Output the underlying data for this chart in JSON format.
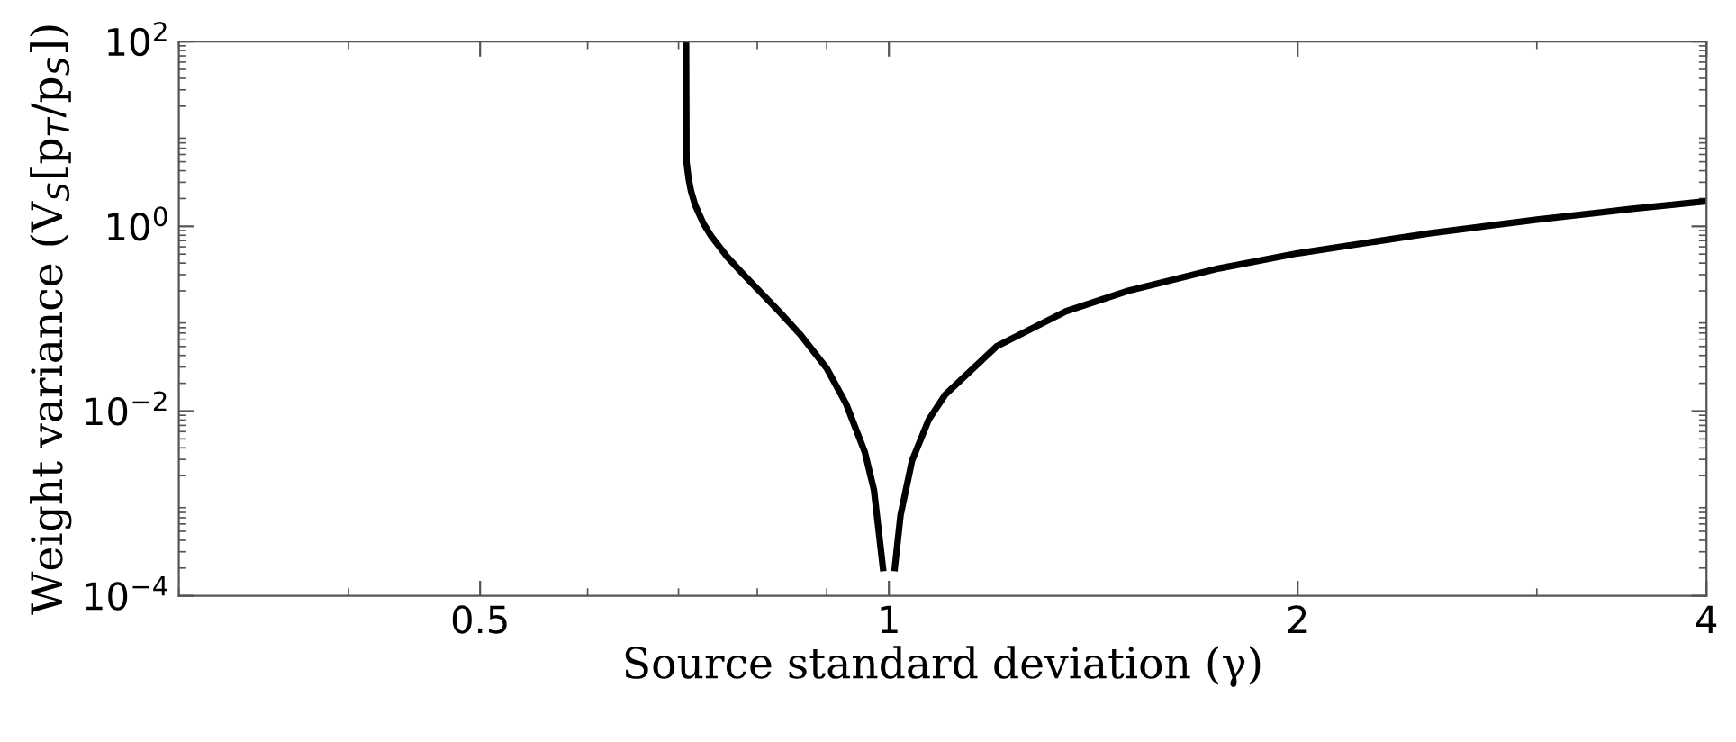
{
  "chart_data": {
    "type": "line",
    "xlabel": "Source standard deviation (γ)",
    "ylabel": "Weight variance (V$_{S}$[p$_{T}$/p$_{S}$])",
    "log": "xy",
    "grid": false,
    "marker": "none",
    "line_style": "solid",
    "xlim": [
      0.3,
      4
    ],
    "xticks": [
      0.5,
      1,
      2,
      4
    ],
    "ylim": [
      0.0001,
      100
    ],
    "yticks": [
      {
        "value": 0.0001,
        "label": "10$^{−4}$"
      },
      {
        "value": 0.01,
        "label": "10$^{−2}$"
      },
      {
        "value": 1,
        "label": "10$^{0}$"
      },
      {
        "value": 100,
        "label": "10$^{2}$"
      }
    ],
    "series": [
      {
        "color": "#000000",
        "x": [
          0.709,
          0.7095,
          0.712,
          0.715,
          0.72,
          0.73,
          0.74,
          0.76,
          0.78,
          0.8,
          0.83,
          0.86,
          0.9,
          0.93,
          0.96,
          0.975,
          0.99,
          1.0,
          1.01,
          1.02,
          1.04,
          1.07,
          1.1,
          1.2,
          1.35,
          1.5,
          1.75,
          2,
          2.5,
          3,
          3.5,
          4
        ],
        "values": [
          100,
          5.0,
          3.3,
          2.4,
          1.7,
          1.08,
          0.78,
          0.47,
          0.31,
          0.21,
          0.12,
          0.068,
          0.029,
          0.012,
          0.0036,
          0.0014,
          0.0002,
          null,
          0.0002,
          0.00075,
          0.0029,
          0.0081,
          0.015,
          0.05,
          0.12,
          0.2,
          0.35,
          0.51,
          0.84,
          1.18,
          1.53,
          1.87
        ]
      }
    ]
  }
}
